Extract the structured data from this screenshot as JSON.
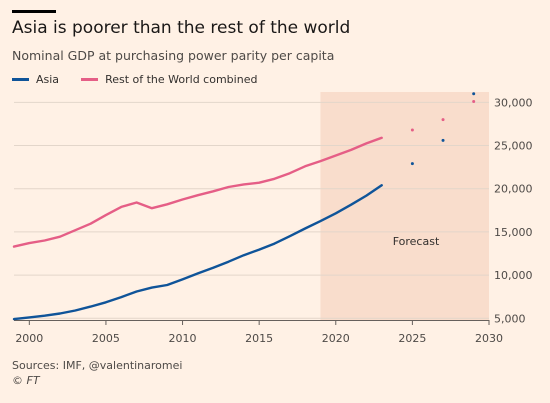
{
  "header": {
    "title": "Asia is poorer than the rest of the world",
    "subtitle": "Nominal GDP at purchasing power parity per capita"
  },
  "footer": {
    "source": "Sources: IMF, @valentinaromei",
    "copyright": "© FT"
  },
  "colors": {
    "background": "#FFF1E5",
    "asia": "#0F5499",
    "rest_of_world": "#E55E86",
    "forecast_band": "#F9DDCC",
    "grid": "#E3D6CA",
    "axis_text": "#4E4A47"
  },
  "chart_data": {
    "type": "line",
    "title": "Asia is poorer than the rest of the world",
    "subtitle": "Nominal GDP at purchasing power parity per capita",
    "xlim": [
      1999,
      2030
    ],
    "ylim": [
      4800,
      31200
    ],
    "x_ticks": [
      2000,
      2005,
      2010,
      2015,
      2020,
      2025,
      2030
    ],
    "y_ticks": [
      5000,
      10000,
      15000,
      20000,
      25000,
      30000
    ],
    "y_tick_labels": [
      "5,000",
      "10,000",
      "15,000",
      "20,000",
      "25,000",
      "30,000"
    ],
    "y_axis_side": "right",
    "grid": true,
    "legend_position": "top-left",
    "forecast_region": {
      "from": 2019,
      "to": 2030,
      "label": "Forecast"
    },
    "series": [
      {
        "name": "Asia",
        "color": "#0F5499",
        "x": [
          1999,
          2000,
          2001,
          2002,
          2003,
          2004,
          2005,
          2006,
          2007,
          2008,
          2009,
          2010,
          2011,
          2012,
          2013,
          2014,
          2015,
          2016,
          2017,
          2018,
          2019,
          2020,
          2021,
          2022,
          2023
        ],
        "values": [
          4900,
          5100,
          5300,
          5550,
          5900,
          6350,
          6850,
          7450,
          8100,
          8550,
          8850,
          9500,
          10200,
          10850,
          11550,
          12300,
          12950,
          13650,
          14500,
          15400,
          16250,
          17150,
          18150,
          19200,
          20400
        ],
        "forecast_points": {
          "x": [
            2025,
            2027,
            2029
          ],
          "values": [
            22900,
            25600,
            31000
          ]
        }
      },
      {
        "name": "Rest of the World combined",
        "color": "#E55E86",
        "x": [
          1999,
          2000,
          2001,
          2002,
          2003,
          2004,
          2005,
          2006,
          2007,
          2008,
          2009,
          2010,
          2011,
          2012,
          2013,
          2014,
          2015,
          2016,
          2017,
          2018,
          2019,
          2020,
          2021,
          2022,
          2023
        ],
        "values": [
          13300,
          13700,
          14000,
          14450,
          15200,
          15950,
          16950,
          17900,
          18400,
          17750,
          18200,
          18750,
          19250,
          19700,
          20200,
          20500,
          20700,
          21150,
          21800,
          22600,
          23200,
          23850,
          24500,
          25250,
          25900
        ],
        "forecast_points": {
          "x": [
            2025,
            2027,
            2029
          ],
          "values": [
            26800,
            28000,
            30100
          ]
        }
      }
    ]
  }
}
